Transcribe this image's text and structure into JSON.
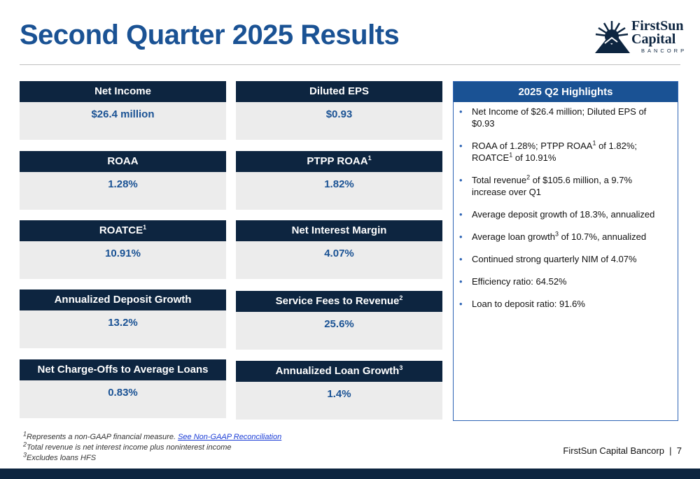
{
  "header": {
    "title": "Second Quarter 2025 Results"
  },
  "logo": {
    "line1": "FirstSun",
    "line2": "Capital",
    "sub": "BANCORP"
  },
  "metrics": [
    {
      "label": "Net Income",
      "sup": "",
      "value": "$26.4 million"
    },
    {
      "label": "Diluted EPS",
      "sup": "",
      "value": "$0.93"
    },
    {
      "label": "ROAA",
      "sup": "",
      "value": "1.28%"
    },
    {
      "label": "PTPP ROAA",
      "sup": "1",
      "value": "1.82%"
    },
    {
      "label": "ROATCE",
      "sup": "1",
      "value": "10.91%"
    },
    {
      "label": "Net Interest Margin",
      "sup": "",
      "value": "4.07%"
    },
    {
      "label": "Annualized Deposit Growth",
      "sup": "",
      "value": "13.2%"
    },
    {
      "label": "Service Fees to Revenue",
      "sup": "2",
      "value": "25.6%"
    },
    {
      "label": "Net Charge-Offs to Average Loans",
      "sup": "",
      "value": "0.83%"
    },
    {
      "label": "Annualized Loan Growth",
      "sup": "3",
      "value": "1.4%"
    }
  ],
  "highlights": {
    "title": "2025 Q2 Highlights",
    "items": [
      {
        "pre": "Net Income of $26.4 million; Diluted EPS of $0.93",
        "sup": "",
        "post": "",
        "sup2": "",
        "post2": ""
      },
      {
        "pre": "ROAA of 1.28%; PTPP ROAA",
        "sup": "1",
        "post": " of 1.82%; ROATCE",
        "sup2": "1",
        "post2": " of 10.91%"
      },
      {
        "pre": "Total revenue",
        "sup": "2",
        "post": " of $105.6 million, a 9.7% increase over Q1",
        "sup2": "",
        "post2": ""
      },
      {
        "pre": "Average deposit growth of 18.3%, annualized",
        "sup": "",
        "post": "",
        "sup2": "",
        "post2": ""
      },
      {
        "pre": "Average loan growth",
        "sup": "3",
        "post": " of 10.7%, annualized",
        "sup2": "",
        "post2": ""
      },
      {
        "pre": "Continued strong quarterly NIM of 4.07%",
        "sup": "",
        "post": "",
        "sup2": "",
        "post2": ""
      },
      {
        "pre": "Efficiency ratio: 64.52%",
        "sup": "",
        "post": "",
        "sup2": "",
        "post2": ""
      },
      {
        "pre": "Loan to deposit ratio: 91.6%",
        "sup": "",
        "post": "",
        "sup2": "",
        "post2": ""
      }
    ]
  },
  "footnotes": {
    "n1": "1",
    "t1": "Represents a non-GAAP financial measure. ",
    "link1": "See Non-GAAP Reconciliation",
    "n2": "2",
    "t2": "Total revenue is net interest income plus noninterest income",
    "n3": "3",
    "t3": "Excludes loans HFS"
  },
  "footer": {
    "text": "FirstSun Capital Bancorp  |  7"
  },
  "colors": {
    "navy": "#0d2540",
    "blue": "#1a5294",
    "card_bg": "#ececec",
    "panel_border": "#2f65b5"
  }
}
